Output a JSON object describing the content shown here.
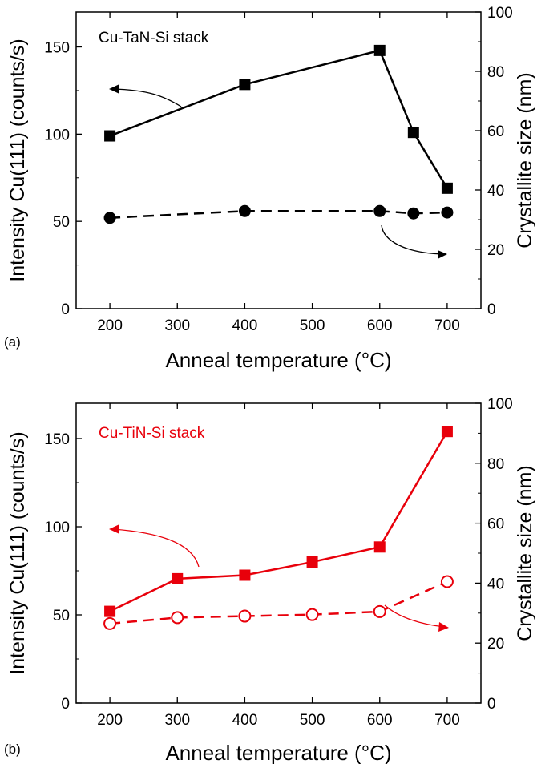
{
  "chart_data": [
    {
      "type": "line",
      "panel_label": "(a)",
      "annotation": "Cu-TaN-Si stack",
      "xlabel": "Anneal temperature (°C)",
      "ylabel": "Intensity Cu(111) (counts/s)",
      "y2label": "Crystallite size (nm)",
      "xlim": [
        150,
        750
      ],
      "ylim": [
        0,
        170
      ],
      "y2lim": [
        0,
        100
      ],
      "xticks": [
        200,
        300,
        400,
        500,
        600,
        700
      ],
      "yticks": [
        0,
        50,
        100,
        150
      ],
      "y2ticks": [
        0,
        20,
        40,
        60,
        80,
        100
      ],
      "color": "#000000",
      "grid": false,
      "series": [
        {
          "axis": "left",
          "marker": "filled-square",
          "line": "solid",
          "x": [
            200,
            400,
            600,
            650,
            700
          ],
          "values": [
            99,
            128.5,
            148,
            101,
            69
          ]
        },
        {
          "axis": "right",
          "marker": "filled-circle",
          "line": "dashed",
          "x": [
            200,
            400,
            600,
            650,
            700
          ],
          "values": [
            30.6,
            32.9,
            32.9,
            32.1,
            32.4
          ]
        }
      ]
    },
    {
      "type": "line",
      "panel_label": "(b)",
      "annotation": "Cu-TiN-Si stack",
      "xlabel": "Anneal temperature (°C)",
      "ylabel": "Intensity Cu(111) (counts/s)",
      "y2label": "Crystallite size (nm)",
      "xlim": [
        150,
        750
      ],
      "ylim": [
        0,
        170
      ],
      "y2lim": [
        0,
        100
      ],
      "xticks": [
        200,
        300,
        400,
        500,
        600,
        700
      ],
      "yticks": [
        0,
        50,
        100,
        150
      ],
      "y2ticks": [
        0,
        20,
        40,
        60,
        80,
        100
      ],
      "color": "#e8000b",
      "grid": false,
      "series": [
        {
          "axis": "left",
          "marker": "filled-square",
          "line": "solid",
          "x": [
            200,
            300,
            400,
            500,
            600,
            700
          ],
          "values": [
            52,
            70.5,
            72.5,
            80,
            88.5,
            154
          ]
        },
        {
          "axis": "right",
          "marker": "open-circle",
          "line": "dashed",
          "x": [
            200,
            300,
            400,
            500,
            600,
            700
          ],
          "values": [
            26.5,
            28.5,
            29,
            29.5,
            30.5,
            40.5
          ]
        }
      ]
    }
  ]
}
